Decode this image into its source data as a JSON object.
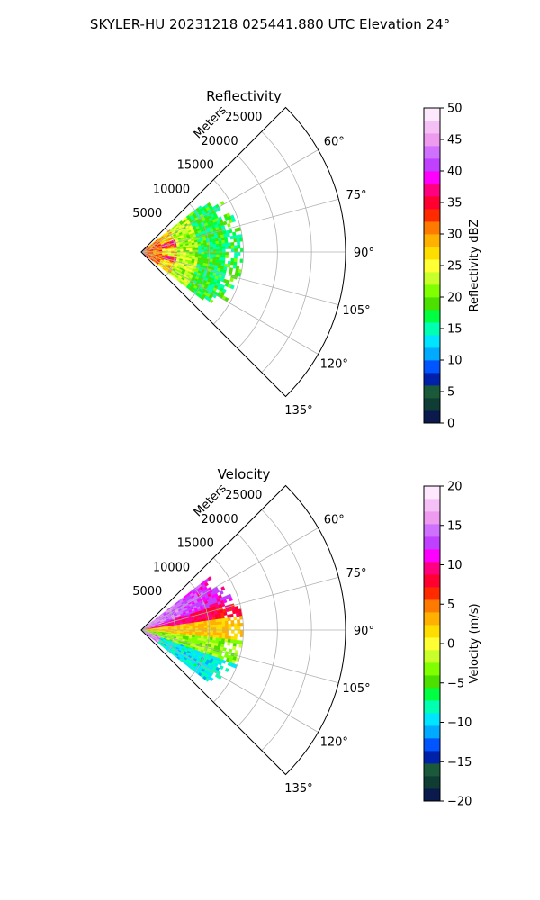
{
  "figure": {
    "suptitle": "SKYLER-HU  20231218  025441.880 UTC Elevation 24°"
  },
  "chart_data": [
    {
      "type": "heatmap",
      "subtype": "polar-sector (PPI)",
      "title": "Reflectivity",
      "range_label": "Meters",
      "radial_ticks": [
        5000,
        10000,
        15000,
        20000,
        25000
      ],
      "radial_tick_labels": [
        "5000",
        "10000",
        "15000",
        "20000",
        "25000"
      ],
      "range_max": 30000,
      "data_extent_m": 15000,
      "azimuth_range_deg": [
        45,
        135
      ],
      "azimuth_ticks": [
        60,
        75,
        90,
        105,
        120,
        135
      ],
      "azimuth_tick_labels": [
        "60°",
        "75°",
        "90°",
        "105°",
        "120°",
        "135°"
      ],
      "grid": true,
      "colorbar": {
        "label": "Reflectivity dBZ",
        "min": 0,
        "max": 50,
        "ticks": [
          0,
          5,
          10,
          15,
          20,
          25,
          30,
          35,
          40,
          45,
          50
        ],
        "tick_labels": [
          "0",
          "5",
          "10",
          "15",
          "20",
          "25",
          "30",
          "35",
          "40",
          "45",
          "50"
        ],
        "colors": [
          "#0a1a4d",
          "#0f3d33",
          "#1a5a3a",
          "#0022aa",
          "#0055ff",
          "#00aaff",
          "#00e5ff",
          "#00ffb0",
          "#00ff40",
          "#4ce000",
          "#80ff00",
          "#c8ff2a",
          "#ffff33",
          "#ffdd00",
          "#ffb000",
          "#ff7a00",
          "#ff2a00",
          "#ff0030",
          "#ff0080",
          "#ff00ff",
          "#c040ff",
          "#d070ff",
          "#ee9aee",
          "#f5c0f5",
          "#fde8fd"
        ]
      }
    },
    {
      "type": "heatmap",
      "subtype": "polar-sector (PPI)",
      "title": "Velocity",
      "range_label": "Meters",
      "radial_ticks": [
        5000,
        10000,
        15000,
        20000,
        25000
      ],
      "radial_tick_labels": [
        "5000",
        "10000",
        "15000",
        "20000",
        "25000"
      ],
      "range_max": 30000,
      "data_extent_m": 15000,
      "azimuth_range_deg": [
        45,
        135
      ],
      "azimuth_ticks": [
        60,
        75,
        90,
        105,
        120,
        135
      ],
      "azimuth_tick_labels": [
        "60°",
        "75°",
        "90°",
        "105°",
        "120°",
        "135°"
      ],
      "grid": true,
      "colorbar": {
        "label": "Velocity (m/s)",
        "min": -20,
        "max": 20,
        "ticks": [
          -20,
          -15,
          -10,
          -5,
          0,
          5,
          10,
          15,
          20
        ],
        "tick_labels": [
          "−20",
          "−15",
          "−10",
          "−5",
          "0",
          "5",
          "10",
          "15",
          "20"
        ],
        "colors": [
          "#0a1a4d",
          "#0f3d33",
          "#1a5a3a",
          "#0022aa",
          "#0055ff",
          "#00aaff",
          "#00e5ff",
          "#00ffb0",
          "#00ff40",
          "#4ce000",
          "#80ff00",
          "#c8ff2a",
          "#ffff33",
          "#ffdd00",
          "#ffb000",
          "#ff7a00",
          "#ff2a00",
          "#ff0030",
          "#ff0080",
          "#ff00ff",
          "#c040ff",
          "#d070ff",
          "#ee9aee",
          "#f5c0f5",
          "#fde8fd"
        ]
      }
    }
  ]
}
